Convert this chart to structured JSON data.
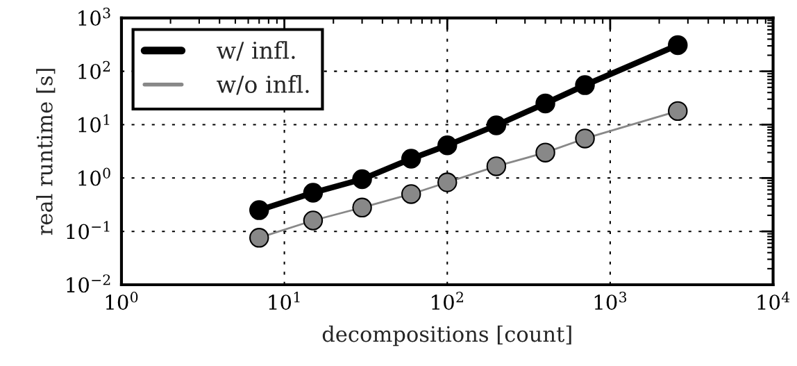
{
  "chart_data": {
    "type": "line",
    "xlabel": "decompositions [count]",
    "ylabel": "real runtime [s]",
    "x": [
      7,
      15,
      30,
      60,
      100,
      200,
      400,
      700,
      2600
    ],
    "series": [
      {
        "name": "w/ infl.",
        "color": "#000000",
        "values": [
          0.25,
          0.53,
          0.95,
          2.3,
          4.1,
          9.7,
          25,
          55,
          310
        ]
      },
      {
        "name": "w/o infl.",
        "color": "#888888",
        "values": [
          0.076,
          0.16,
          0.28,
          0.5,
          0.83,
          1.66,
          3.0,
          5.5,
          18
        ]
      }
    ],
    "log": "xy",
    "marker": "circle",
    "line_style": "solid",
    "grid": true,
    "legend": "top left",
    "xlim": [
      1,
      10000
    ],
    "ylim": [
      0.01,
      1000
    ],
    "xticks": [
      {
        "value": 1,
        "label": "10$^{0}$"
      },
      {
        "value": 10,
        "label": "10$^{1}$"
      },
      {
        "value": 100,
        "label": "10$^{2}$"
      },
      {
        "value": 1000,
        "label": "10$^{3}$"
      },
      {
        "value": 10000,
        "label": "10$^{4}$"
      }
    ],
    "yticks": [
      {
        "value": 0.01,
        "label": "10$^{−2}$"
      },
      {
        "value": 0.1,
        "label": "10$^{−1}$"
      },
      {
        "value": 1,
        "label": "10$^{0}$"
      },
      {
        "value": 10,
        "label": "10$^{1}$"
      },
      {
        "value": 100,
        "label": "10$^{2}$"
      },
      {
        "value": 1000,
        "label": "10$^{3}$"
      }
    ]
  }
}
